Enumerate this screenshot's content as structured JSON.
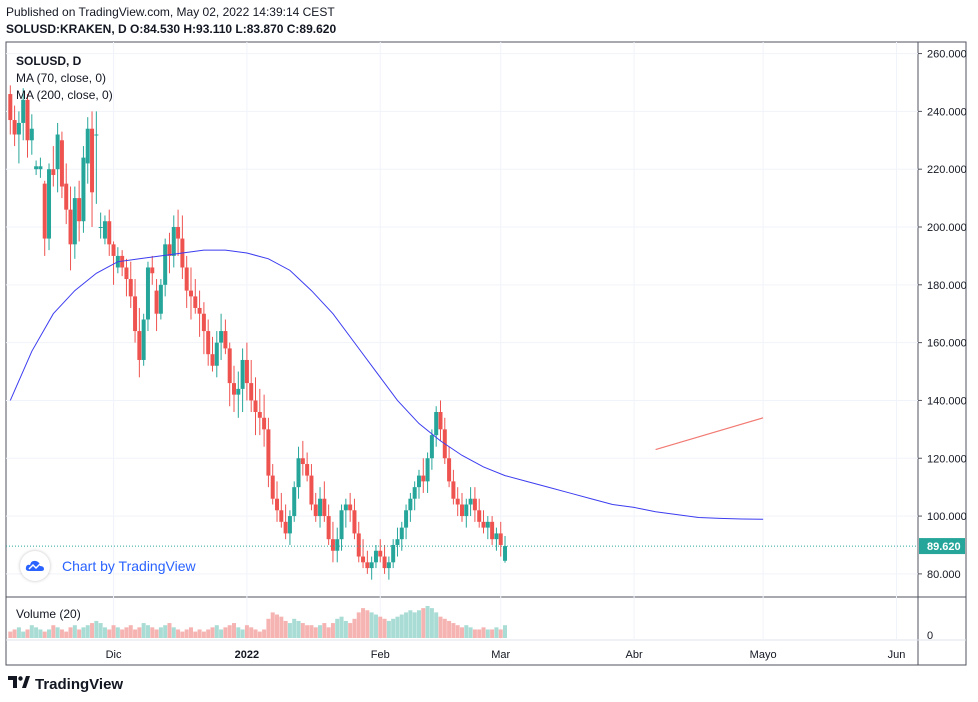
{
  "header": {
    "published": "Published on TradingView.com, May 02, 2022 14:39:14 CEST",
    "ohlc": "SOLUSD:KRAKEN, D  O:84.530  H:93.110  L:83.870  C:89.620"
  },
  "legend": {
    "symbol": "SOLUSD, D",
    "ma70": "MA (70, close, 0)",
    "ma200": "MA (200, close, 0)",
    "volume": "Volume (20)"
  },
  "badge": {
    "text": "Chart by TradingView",
    "icon": "tradingview-cloud-icon"
  },
  "footer": {
    "brand": "TradingView",
    "icon": "tradingview-logo-icon"
  },
  "colors": {
    "up": "#26a69a",
    "down": "#ef5350",
    "upLight": "#a8dcd4",
    "downLight": "#f5b3b1",
    "ma": "#3c3cf0",
    "trend": "#f27a73",
    "last": "#26a69a"
  },
  "chart_data": {
    "type": "candlestick",
    "symbol": "SOLUSD:KRAKEN",
    "interval": "D",
    "y_ticks": [
      "80.000",
      "100.000",
      "120.000",
      "140.000",
      "160.000",
      "180.000",
      "200.000",
      "220.000",
      "240.000",
      "260.000"
    ],
    "y_tick_values": [
      80,
      100,
      120,
      140,
      160,
      180,
      200,
      220,
      240,
      260
    ],
    "ylim": [
      72,
      264
    ],
    "x_ticks": [
      {
        "label": "Dic",
        "index": 24
      },
      {
        "label": "2022",
        "index": 55
      },
      {
        "label": "Feb",
        "index": 86
      },
      {
        "label": "Mar",
        "index": 114
      },
      {
        "label": "Abr",
        "index": 145
      },
      {
        "label": "Mayo",
        "index": 175
      },
      {
        "label": "Jun",
        "index": 206
      }
    ],
    "x_range": [
      -1,
      211
    ],
    "last_price": "89.620",
    "last_value": 89.62,
    "volume_axis_label": "0",
    "ohlc": [
      [
        246,
        249,
        232,
        237
      ],
      [
        237,
        242,
        228,
        232
      ],
      [
        232,
        240,
        222,
        236
      ],
      [
        236,
        248,
        230,
        244
      ],
      [
        244,
        246,
        224,
        230
      ],
      [
        230,
        239,
        225,
        234
      ],
      [
        220,
        223,
        218,
        221
      ],
      [
        220,
        224,
        217,
        221
      ],
      [
        215,
        216,
        190,
        196
      ],
      [
        196,
        222,
        192,
        220
      ],
      [
        220,
        228,
        214,
        218
      ],
      [
        220,
        236,
        212,
        232
      ],
      [
        230,
        233,
        210,
        214
      ],
      [
        215,
        222,
        201,
        206
      ],
      [
        206,
        214,
        185,
        194
      ],
      [
        194,
        214,
        189,
        210
      ],
      [
        210,
        216,
        195,
        202
      ],
      [
        202,
        228,
        198,
        224
      ],
      [
        222,
        238,
        215,
        234
      ],
      [
        234,
        240,
        200,
        212
      ],
      [
        232,
        240,
        208,
        232
      ],
      [
        200,
        205,
        196,
        200
      ],
      [
        196,
        204,
        194,
        202
      ],
      [
        202,
        206,
        190,
        194
      ],
      [
        194,
        195,
        180,
        190
      ],
      [
        186,
        193,
        184,
        190
      ],
      [
        190,
        192,
        183,
        186
      ],
      [
        186,
        189,
        176,
        182
      ],
      [
        182,
        188,
        172,
        176
      ],
      [
        176,
        182,
        160,
        164
      ],
      [
        164,
        172,
        148,
        154
      ],
      [
        154,
        170,
        152,
        168
      ],
      [
        168,
        188,
        164,
        186
      ],
      [
        186,
        190,
        180,
        184
      ],
      [
        178,
        182,
        164,
        170
      ],
      [
        170,
        182,
        168,
        180
      ],
      [
        180,
        196,
        176,
        194
      ],
      [
        194,
        198,
        184,
        190
      ],
      [
        190,
        204,
        186,
        200
      ],
      [
        200,
        206,
        190,
        196
      ],
      [
        196,
        204,
        182,
        186
      ],
      [
        186,
        190,
        172,
        178
      ],
      [
        178,
        186,
        168,
        176
      ],
      [
        176,
        182,
        170,
        172
      ],
      [
        172,
        178,
        162,
        170
      ],
      [
        170,
        174,
        156,
        164
      ],
      [
        164,
        168,
        152,
        156
      ],
      [
        156,
        162,
        150,
        152
      ],
      [
        152,
        164,
        148,
        160
      ],
      [
        160,
        170,
        154,
        164
      ],
      [
        164,
        168,
        156,
        158
      ],
      [
        158,
        160,
        138,
        146
      ],
      [
        146,
        152,
        136,
        142
      ],
      [
        142,
        150,
        134,
        144
      ],
      [
        144,
        158,
        136,
        154
      ],
      [
        154,
        160,
        140,
        146
      ],
      [
        146,
        154,
        136,
        140
      ],
      [
        140,
        148,
        128,
        136
      ],
      [
        136,
        144,
        128,
        134
      ],
      [
        134,
        142,
        124,
        130
      ],
      [
        130,
        134,
        110,
        114
      ],
      [
        114,
        118,
        104,
        106
      ],
      [
        106,
        112,
        98,
        102
      ],
      [
        102,
        108,
        96,
        98
      ],
      [
        98,
        104,
        92,
        94
      ],
      [
        94,
        102,
        90,
        100
      ],
      [
        100,
        112,
        98,
        110
      ],
      [
        110,
        124,
        106,
        120
      ],
      [
        120,
        126,
        114,
        118
      ],
      [
        118,
        122,
        112,
        114
      ],
      [
        114,
        118,
        102,
        104
      ],
      [
        104,
        108,
        98,
        100
      ],
      [
        100,
        110,
        96,
        106
      ],
      [
        106,
        112,
        98,
        100
      ],
      [
        100,
        104,
        90,
        92
      ],
      [
        92,
        98,
        84,
        88
      ],
      [
        88,
        96,
        84,
        92
      ],
      [
        92,
        104,
        88,
        102
      ],
      [
        102,
        106,
        96,
        104
      ],
      [
        104,
        108,
        98,
        102
      ],
      [
        102,
        106,
        92,
        94
      ],
      [
        94,
        98,
        84,
        86
      ],
      [
        86,
        92,
        82,
        84
      ],
      [
        84,
        88,
        80,
        82
      ],
      [
        82,
        86,
        78,
        84
      ],
      [
        84,
        90,
        82,
        88
      ],
      [
        88,
        92,
        84,
        86
      ],
      [
        86,
        90,
        80,
        82
      ],
      [
        82,
        86,
        78,
        84
      ],
      [
        84,
        92,
        82,
        90
      ],
      [
        90,
        96,
        86,
        92
      ],
      [
        92,
        98,
        88,
        96
      ],
      [
        96,
        104,
        92,
        102
      ],
      [
        102,
        108,
        98,
        106
      ],
      [
        106,
        112,
        102,
        110
      ],
      [
        110,
        116,
        106,
        114
      ],
      [
        114,
        120,
        108,
        112
      ],
      [
        112,
        122,
        108,
        120
      ],
      [
        120,
        130,
        116,
        128
      ],
      [
        128,
        138,
        124,
        136
      ],
      [
        136,
        140,
        126,
        130
      ],
      [
        130,
        134,
        118,
        120
      ],
      [
        120,
        124,
        110,
        112
      ],
      [
        112,
        116,
        104,
        106
      ],
      [
        106,
        110,
        100,
        104
      ],
      [
        104,
        108,
        98,
        100
      ],
      [
        100,
        106,
        96,
        104
      ],
      [
        104,
        110,
        100,
        106
      ],
      [
        106,
        110,
        98,
        102
      ],
      [
        102,
        106,
        96,
        98
      ],
      [
        98,
        102,
        94,
        96
      ],
      [
        96,
        100,
        92,
        98
      ],
      [
        98,
        100,
        90,
        92
      ],
      [
        92,
        96,
        88,
        94
      ],
      [
        94,
        98,
        86,
        90
      ],
      [
        84.53,
        93.11,
        83.87,
        89.62
      ]
    ],
    "ohlc_note": "",
    "ma70": [
      [
        0,
        140
      ],
      [
        5,
        157
      ],
      [
        10,
        170
      ],
      [
        15,
        178
      ],
      [
        20,
        184
      ],
      [
        25,
        188
      ],
      [
        30,
        189
      ],
      [
        35,
        190
      ],
      [
        40,
        191
      ],
      [
        45,
        192
      ],
      [
        50,
        192
      ],
      [
        55,
        191
      ],
      [
        60,
        189
      ],
      [
        65,
        185
      ],
      [
        70,
        178
      ],
      [
        75,
        170
      ],
      [
        80,
        160
      ],
      [
        85,
        150
      ],
      [
        90,
        140
      ],
      [
        95,
        132
      ],
      [
        100,
        126
      ],
      [
        105,
        121
      ],
      [
        110,
        117
      ],
      [
        115,
        114
      ],
      [
        120,
        112
      ],
      [
        125,
        110
      ],
      [
        130,
        108
      ],
      [
        135,
        106
      ],
      [
        140,
        104
      ],
      [
        145,
        103
      ],
      [
        150,
        101.5
      ],
      [
        155,
        100.5
      ],
      [
        160,
        99.5
      ],
      [
        165,
        99.2
      ],
      [
        170,
        99.0
      ],
      [
        175,
        98.9
      ]
    ],
    "trendline": [
      [
        150,
        123
      ],
      [
        175,
        134
      ]
    ],
    "volume": [
      3,
      4,
      5,
      3,
      4,
      6,
      5,
      4,
      3,
      4,
      6,
      5,
      4,
      3,
      5,
      6,
      4,
      5,
      6,
      7,
      8,
      7,
      5,
      4,
      6,
      5,
      4,
      5,
      6,
      4,
      5,
      7,
      6,
      5,
      4,
      5,
      6,
      7,
      5,
      4,
      3,
      4,
      5,
      3,
      4,
      3,
      4,
      5,
      6,
      4,
      5,
      6,
      7,
      5,
      4,
      6,
      5,
      4,
      3,
      4,
      9,
      12,
      11,
      10,
      8,
      7,
      9,
      8,
      7,
      6,
      6,
      5,
      6,
      7,
      5,
      7,
      9,
      10,
      8,
      7,
      9,
      12,
      14,
      13,
      12,
      11,
      10,
      9,
      8,
      9,
      10,
      11,
      12,
      13,
      12,
      13,
      14,
      15,
      14,
      12,
      10,
      9,
      8,
      7,
      6,
      5,
      6,
      5,
      4,
      4,
      5,
      4,
      4,
      5,
      4,
      6
    ]
  }
}
